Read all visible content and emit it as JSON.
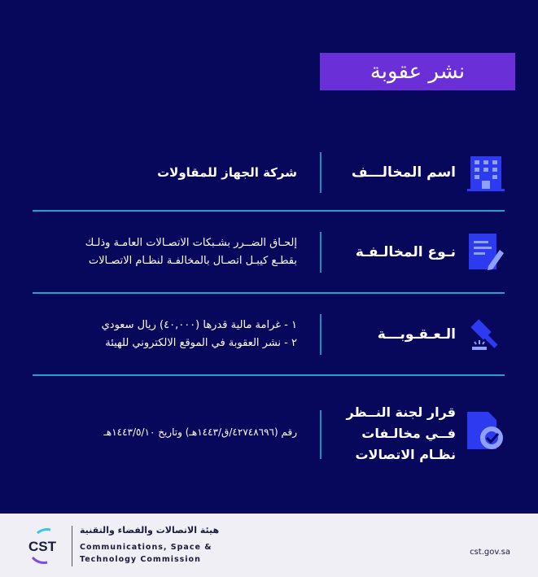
{
  "title": "نشر عقوبة",
  "rows": [
    {
      "label": "اسم المخالـــف",
      "icon": "building-icon",
      "lines": [
        "شركة الجهاز للمقاولات"
      ]
    },
    {
      "label": "نـوع المخالـفـة",
      "icon": "document-edit-icon",
      "lines": [
        "إلحـاق الضــرر بشـبكات الاتصـالات العامـة وذلـك",
        "بقطـع كيبـل اتصـال بالمخالفـة لنظـام الاتصـالات"
      ]
    },
    {
      "label": "الـعـقـوبـــة",
      "icon": "gavel-icon",
      "lines": [
        "١ -  غرامة مالية قدرها (٤٠,٠٠٠) ريال سعودي",
        "٢ - نشر العقوبة في الموقع الالكتروني للهيئة"
      ]
    },
    {
      "label": "قرار لجنة النــظر فــي مخالـفات نظـام الاتصالات",
      "icon": "document-check-icon",
      "lines": [
        "رقم (٤٢٧٤٨٦٩٦/ق/١٤٤٣هـ) وتاريخ ١٤٤٣/٥/١٠هـ"
      ]
    }
  ],
  "footer": {
    "logo_text": "CST",
    "name_ar": "هيئة الاتصالات والفضاء والتقنية",
    "name_en_1": "Communications, Space &",
    "name_en_2": "Technology Commission",
    "url": "cst.gov.sa"
  },
  "colors": {
    "background": "#07075c",
    "title_bg": "#6b2fd8",
    "divider": "#1fa3c9",
    "icon": "#2d3bf0"
  }
}
